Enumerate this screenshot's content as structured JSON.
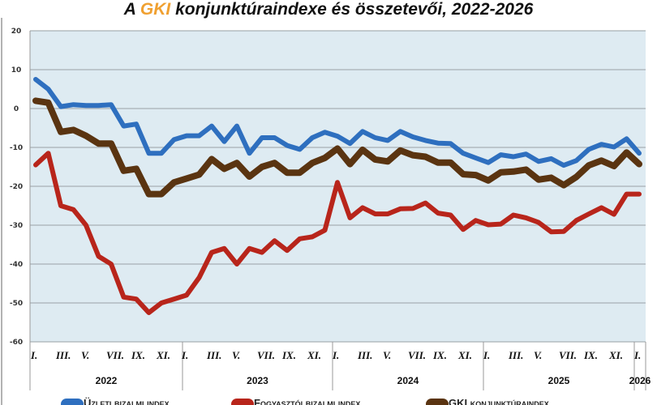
{
  "chart_data": {
    "type": "line",
    "title_prefix": "A ",
    "title_brand": "GKI",
    "title_rest": " konjunktúraindexe és összetevői, 2022-2026",
    "xlabel": "",
    "ylabel": "",
    "ylim": [
      -60,
      20
    ],
    "yticks": [
      20,
      10,
      0,
      -10,
      -20,
      -30,
      -40,
      -50,
      -60
    ],
    "grid": true,
    "legend_position": "bottom",
    "month_labels": [
      "I.",
      "III.",
      "V.",
      "VII.",
      "IX.",
      "XI."
    ],
    "years": [
      "2022",
      "2023",
      "2024",
      "2025",
      "2026"
    ],
    "x_count": 49,
    "series": [
      {
        "name": "Üzleti bizalmi index",
        "color": "#2e6fbf",
        "values": [
          7.5,
          5,
          0.5,
          1,
          0.8,
          0.8,
          1,
          -4.5,
          -4,
          -11.5,
          -11.5,
          -8,
          -7,
          -7,
          -4.5,
          -8.5,
          -4.5,
          -11.5,
          -7.5,
          -7.5,
          -9.5,
          -10.5,
          -7.5,
          -6.1,
          -7.1,
          -9,
          -5.9,
          -7.5,
          -8.2,
          -5.9,
          -7.3,
          -8.2,
          -8.9,
          -9,
          -11.5,
          -12.7,
          -13.9,
          -11.9,
          -12.4,
          -11.7,
          -13.6,
          -12.9,
          -14.6,
          -13.4,
          -10.5,
          -9.2,
          -9.9,
          -7.8,
          -11.5
        ]
      },
      {
        "name": "Fogyasztói bizalmi index",
        "color": "#b8251b",
        "values": [
          -14.5,
          -11.5,
          -25,
          -26,
          -30,
          -38,
          -40,
          -48.5,
          -49,
          -52.5,
          -50,
          -49,
          -48,
          -43.5,
          -37,
          -36,
          -40,
          -36,
          -37,
          -34,
          -36.5,
          -33.5,
          -33,
          -31.3,
          -19,
          -28.1,
          -25.5,
          -27.1,
          -27.1,
          -25.8,
          -25.7,
          -24.3,
          -26.9,
          -27.4,
          -31.1,
          -28.8,
          -29.9,
          -29.7,
          -27.4,
          -28.1,
          -29.3,
          -31.7,
          -31.6,
          -28.8,
          -27.1,
          -25.5,
          -27.2,
          -22,
          -22
        ]
      },
      {
        "name": "GKI konjunktúraindex",
        "color": "#5a3411",
        "values": [
          2,
          1.5,
          -6,
          -5.5,
          -7,
          -9,
          -9,
          -16,
          -15.5,
          -22,
          -22,
          -19,
          -18,
          -17,
          -13,
          -15.5,
          -14,
          -17.5,
          -15,
          -14,
          -16.5,
          -16.5,
          -14,
          -12.7,
          -10.3,
          -14.3,
          -10.6,
          -13.1,
          -13.6,
          -10.8,
          -12,
          -12.4,
          -13.9,
          -13.9,
          -16.9,
          -17.1,
          -18.5,
          -16.4,
          -16.2,
          -15.7,
          -18.3,
          -17.8,
          -19.7,
          -17.6,
          -14.6,
          -13.4,
          -14.8,
          -11.3,
          -14.3
        ]
      }
    ]
  }
}
